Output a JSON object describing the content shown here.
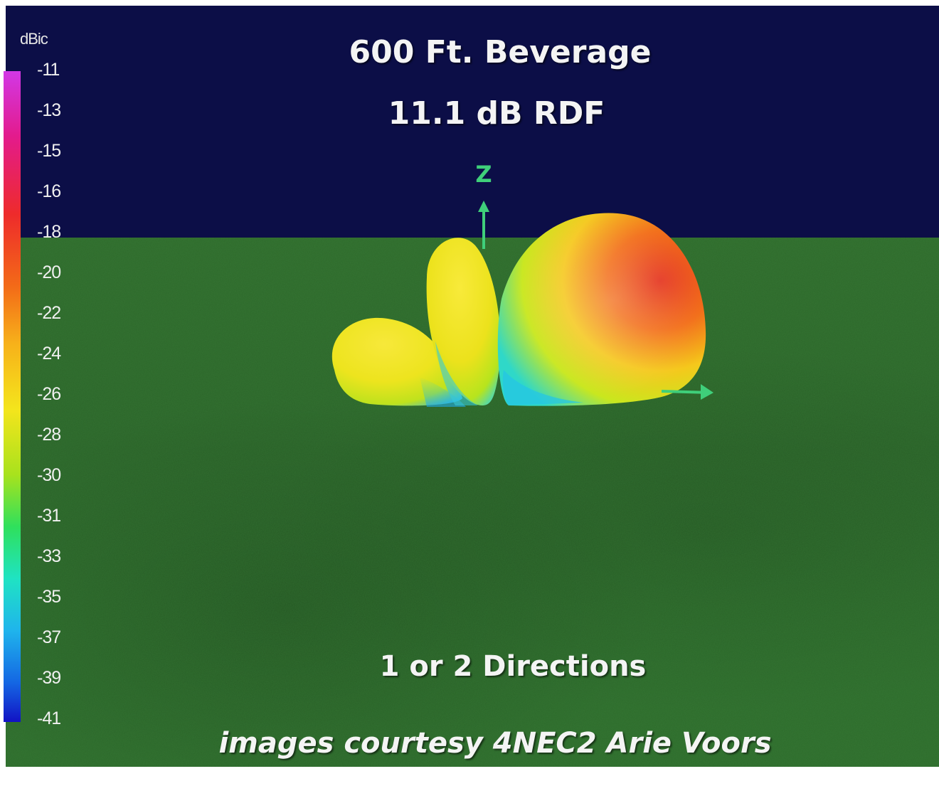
{
  "title": "600 Ft. Beverage",
  "subtitle": "11.1 dB RDF",
  "caption": "1 or 2 Directions",
  "credit": "images courtesy 4NEC2 Arie Voors",
  "axis_label": "Z",
  "colorbar": {
    "unit": "dBic",
    "ticks": [
      "-11",
      "-13",
      "-15",
      "-16",
      "-18",
      "-20",
      "-22",
      "-24",
      "-26",
      "-28",
      "-30",
      "-31",
      "-33",
      "-35",
      "-37",
      "-39",
      "-41"
    ]
  },
  "colors": {
    "sky": "#0c0e47",
    "ground": "#2d6a2b",
    "axis": "#3fcf7a"
  }
}
